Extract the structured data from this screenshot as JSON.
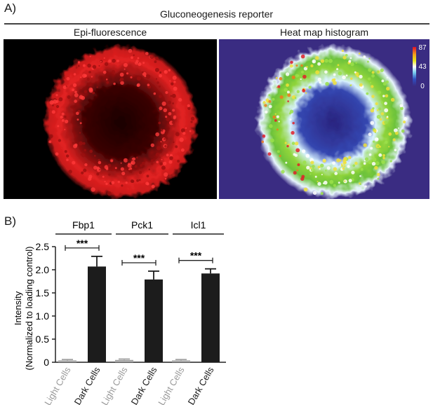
{
  "panel_a": {
    "label": "A)",
    "title": "Gluconeogenesis reporter",
    "left_title": "Epi-fluorescence",
    "right_title": "Heat map histogram",
    "colorbar": {
      "max_label": "87",
      "mid_label": "43",
      "min_label": "0"
    },
    "colors": {
      "fluorescence": "#e0201f",
      "heatmap_background": "#3a2c82"
    }
  },
  "panel_b": {
    "label": "B)",
    "ylabel_line1": "Intensity",
    "ylabel_line2": "(Normalized to loading control)",
    "groups": [
      "Fbp1",
      "Pck1",
      "Icl1"
    ],
    "significance": [
      "***",
      "***",
      "***"
    ],
    "colors": {
      "light_cells": "#a6a6a6",
      "dark_cells": "#1c1c1c"
    }
  },
  "chart_data": {
    "type": "bar",
    "ylim": [
      0,
      2.5
    ],
    "yticks": [
      "0",
      "0.5",
      "1.0",
      "1.5",
      "2.0",
      "2.5"
    ],
    "categories": [
      "Light Cells",
      "Dark Cells",
      "Light Cells",
      "Dark Cells",
      "Light Cells",
      "Dark Cells"
    ],
    "group_labels": [
      "Fbp1",
      "Pck1",
      "Icl1"
    ],
    "values": [
      0.04,
      2.07,
      0.05,
      1.79,
      0.04,
      1.92
    ],
    "errors": [
      0.02,
      0.22,
      0.02,
      0.18,
      0.02,
      0.1
    ],
    "ylabel": "Intensity (Normalized to loading control)",
    "xlabel": ""
  }
}
